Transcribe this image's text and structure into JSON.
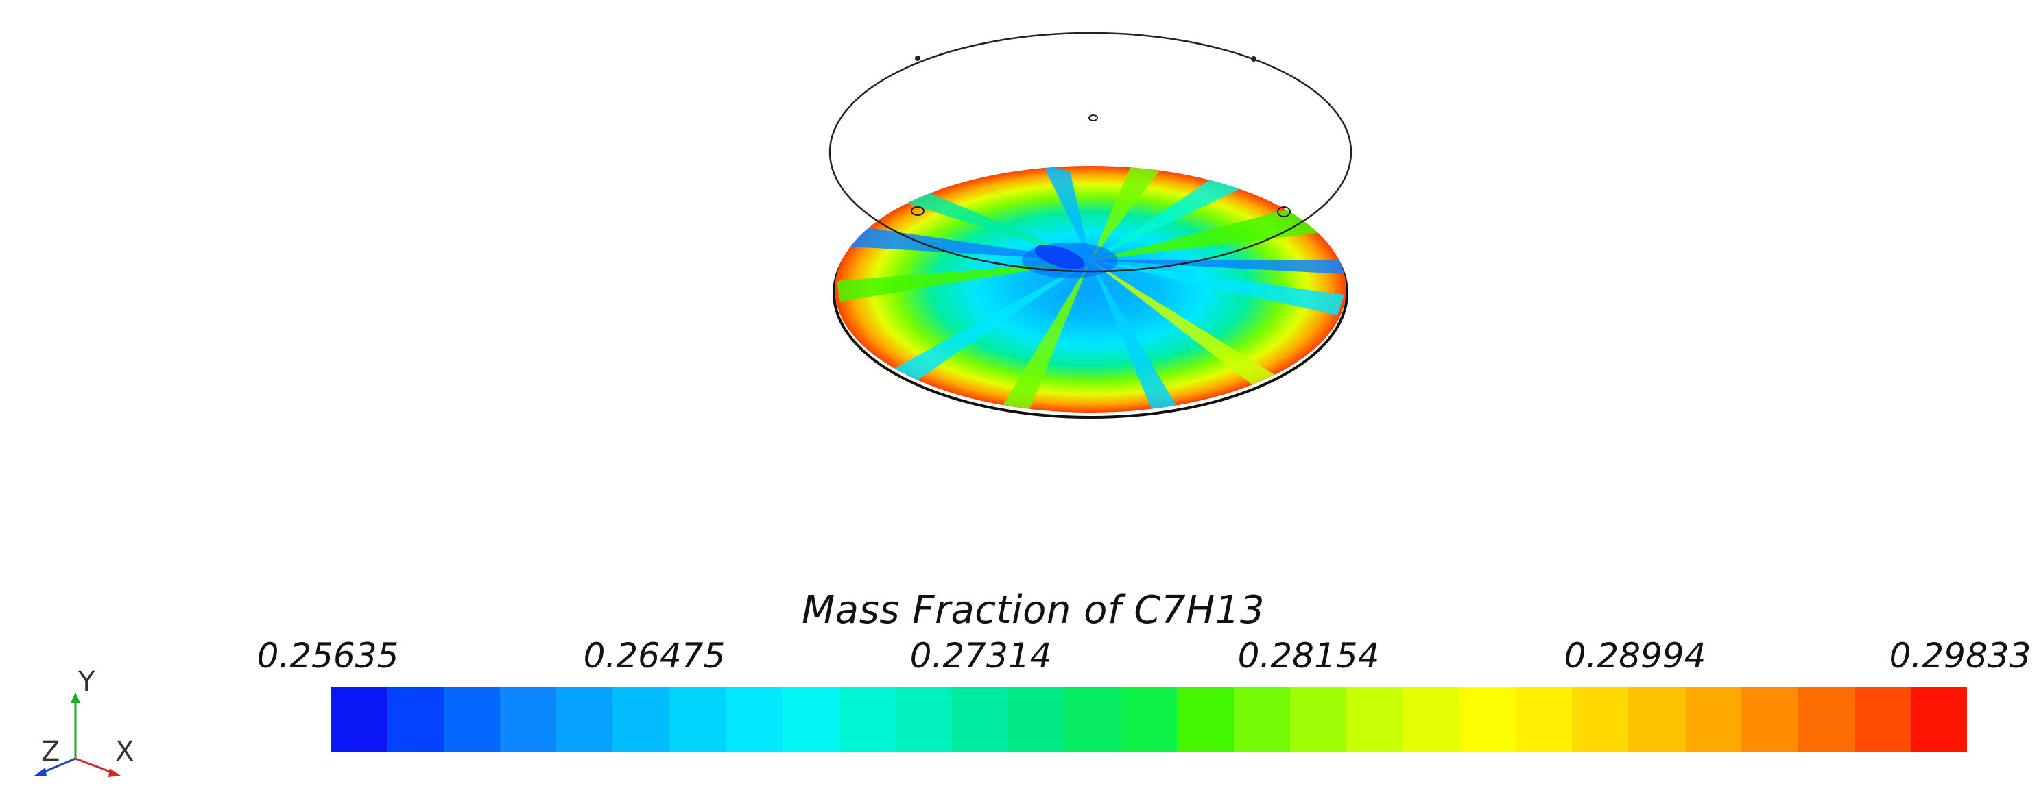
{
  "legend": {
    "title": "Mass Fraction of C7H13",
    "ticks": [
      "0.25635",
      "0.26475",
      "0.27314",
      "0.28154",
      "0.28994",
      "0.29833"
    ],
    "colors": [
      "#0b16f5",
      "#0242ff",
      "#0468ff",
      "#0a86ff",
      "#06a2ff",
      "#03bcff",
      "#00d4ff",
      "#00e7ff",
      "#00f7f3",
      "#00f7d5",
      "#00f1bb",
      "#00eca0",
      "#00e884",
      "#06ed64",
      "#0ff146",
      "#44f700",
      "#74fb05",
      "#9ffd05",
      "#c7ff05",
      "#e4ff03",
      "#fbfd00",
      "#ffef00",
      "#ffd900",
      "#ffc200",
      "#ffa800",
      "#ff8c00",
      "#fd6c00",
      "#ff4c00",
      "#fd1500"
    ]
  },
  "triad": {
    "x_label": "X",
    "y_label": "Y",
    "z_label": "Z"
  }
}
